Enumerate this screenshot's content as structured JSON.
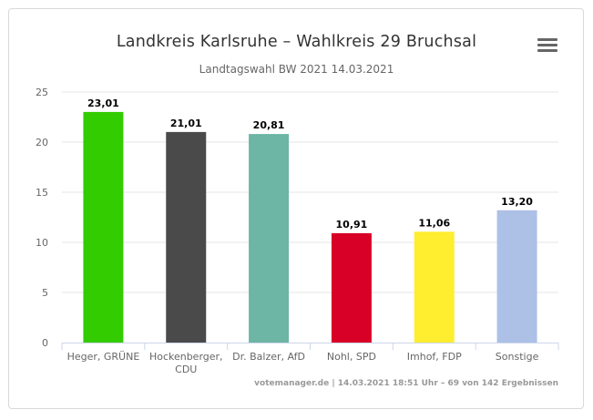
{
  "header": {
    "title": "Landkreis Karlsruhe – Wahlkreis 29 Bruchsal",
    "subtitle": "Landtagswahl BW 2021 14.03.2021",
    "menu_icon": "hamburger-menu-icon"
  },
  "credits": "votemanager.de | 14.03.2021 18:51 Uhr – 69 von 142 Ergebnissen",
  "chart_data": {
    "type": "bar",
    "title": "Landkreis Karlsruhe – Wahlkreis 29 Bruchsal",
    "subtitle": "Landtagswahl BW 2021 14.03.2021",
    "categories": [
      [
        "Heger, GRÜNE"
      ],
      [
        "Hockenberger,",
        "CDU"
      ],
      [
        "Dr. Balzer, AfD"
      ],
      [
        "Nohl, SPD"
      ],
      [
        "Imhof, FDP"
      ],
      [
        "Sonstige"
      ]
    ],
    "values": [
      23.01,
      21.01,
      20.81,
      10.91,
      11.06,
      13.2
    ],
    "data_labels": [
      "23,01",
      "21,01",
      "20,81",
      "10,91",
      "11,06",
      "13,20"
    ],
    "colors": [
      "#33cc00",
      "#4a4a4a",
      "#6db5a4",
      "#d90027",
      "#ffed2f",
      "#adc0e6"
    ],
    "yticks": [
      "0",
      "5",
      "10",
      "15",
      "20",
      "25"
    ],
    "ylim": [
      0,
      25
    ],
    "grid": true,
    "legend": "none"
  }
}
